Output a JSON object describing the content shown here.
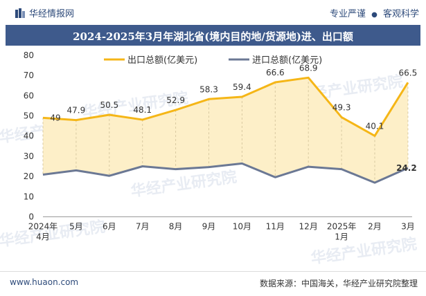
{
  "header": {
    "brand": "华经情报网",
    "tag_left": "专业严谨",
    "tag_dot": "●",
    "tag_right": "客观科学"
  },
  "watermark": "华经产业研究院",
  "footer": {
    "site": "www.huaon.com",
    "source_label": "数据来源：",
    "source_text": "中国海关，华经产业研究院整理"
  },
  "colors": {
    "export": "#f5b617",
    "import": "#6b7894",
    "fill": "#fdefc8",
    "title_bg": "#3e5a8c"
  },
  "chart_data": {
    "type": "area",
    "title": "2024-2025年3月年湖北省(境内目的地/货源地)进、出口额",
    "categories": [
      "2024年4月",
      "5月",
      "6月",
      "7月",
      "8月",
      "9月",
      "10月",
      "11月",
      "12月",
      "2025年1月",
      "2月",
      "3月"
    ],
    "series": [
      {
        "name": "出口总额(亿美元)",
        "values": [
          49,
          47.9,
          50.5,
          48.1,
          52.9,
          58.3,
          59.4,
          66.6,
          68.9,
          49.3,
          40.1,
          66.5
        ]
      },
      {
        "name": "进口总额(亿美元)",
        "values": [
          20.9,
          23.0,
          20.3,
          25.0,
          23.6,
          24.6,
          26.4,
          19.6,
          24.8,
          23.6,
          16.9,
          24.2
        ]
      }
    ],
    "visible_labels": {
      "series1": "24.2"
    },
    "ylim": [
      0,
      80
    ],
    "yticks": [
      0,
      10,
      20,
      30,
      40,
      50,
      60,
      70,
      80
    ],
    "legend": "top",
    "grid": false
  }
}
